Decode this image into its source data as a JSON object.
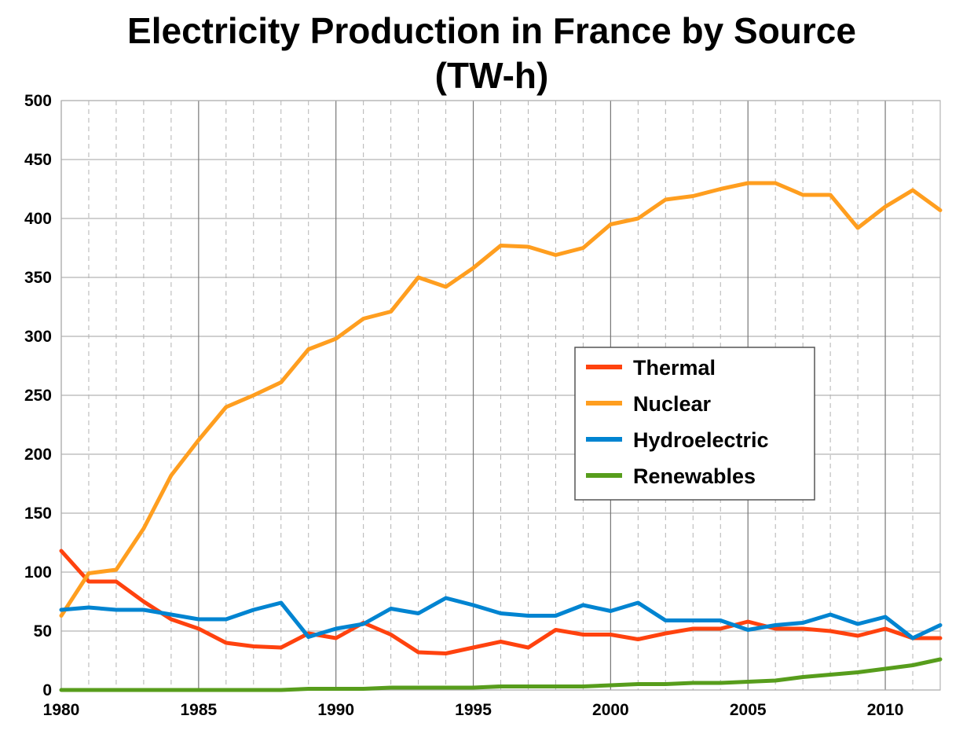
{
  "chart_data": {
    "type": "line",
    "title": "Electricity Production in France by Source",
    "subtitle": "(TW-h)",
    "xlabel": "",
    "ylabel": "",
    "xlim": [
      1980,
      2012
    ],
    "ylim": [
      0,
      500
    ],
    "x_ticks": [
      1980,
      1985,
      1990,
      1995,
      2000,
      2005,
      2010
    ],
    "y_ticks": [
      0,
      50,
      100,
      150,
      200,
      250,
      300,
      350,
      400,
      450,
      500
    ],
    "grid": "major solid, minor dashed",
    "legend_position": "center-right",
    "x": [
      1980,
      1981,
      1982,
      1983,
      1984,
      1985,
      1986,
      1987,
      1988,
      1989,
      1990,
      1991,
      1992,
      1993,
      1994,
      1995,
      1996,
      1997,
      1998,
      1999,
      2000,
      2001,
      2002,
      2003,
      2004,
      2005,
      2006,
      2007,
      2008,
      2009,
      2010,
      2011,
      2012
    ],
    "series": [
      {
        "name": "Thermal",
        "color": "#ff420e",
        "values": [
          118,
          92,
          92,
          75,
          60,
          52,
          40,
          37,
          36,
          48,
          44,
          57,
          47,
          32,
          31,
          36,
          41,
          36,
          51,
          47,
          47,
          43,
          48,
          52,
          52,
          58,
          52,
          52,
          50,
          46,
          52,
          44,
          44
        ]
      },
      {
        "name": "Nuclear",
        "color": "#ff9e1f",
        "values": [
          63,
          99,
          102,
          137,
          182,
          212,
          240,
          250,
          261,
          289,
          298,
          315,
          321,
          350,
          342,
          358,
          377,
          376,
          369,
          375,
          395,
          400,
          416,
          419,
          425,
          430,
          430,
          420,
          420,
          392,
          410,
          424,
          407
        ]
      },
      {
        "name": "Hydroelectric",
        "color": "#0084d1",
        "values": [
          68,
          70,
          68,
          68,
          64,
          60,
          60,
          68,
          74,
          45,
          52,
          56,
          69,
          65,
          78,
          72,
          65,
          63,
          63,
          72,
          67,
          74,
          59,
          59,
          59,
          51,
          55,
          57,
          64,
          56,
          62,
          44,
          55
        ]
      },
      {
        "name": "Renewables",
        "color": "#579d1c",
        "values": [
          0,
          0,
          0,
          0,
          0,
          0,
          0,
          0,
          0,
          1,
          1,
          1,
          2,
          2,
          2,
          2,
          3,
          3,
          3,
          3,
          4,
          5,
          5,
          6,
          6,
          7,
          8,
          11,
          13,
          15,
          18,
          21,
          26
        ]
      }
    ]
  }
}
